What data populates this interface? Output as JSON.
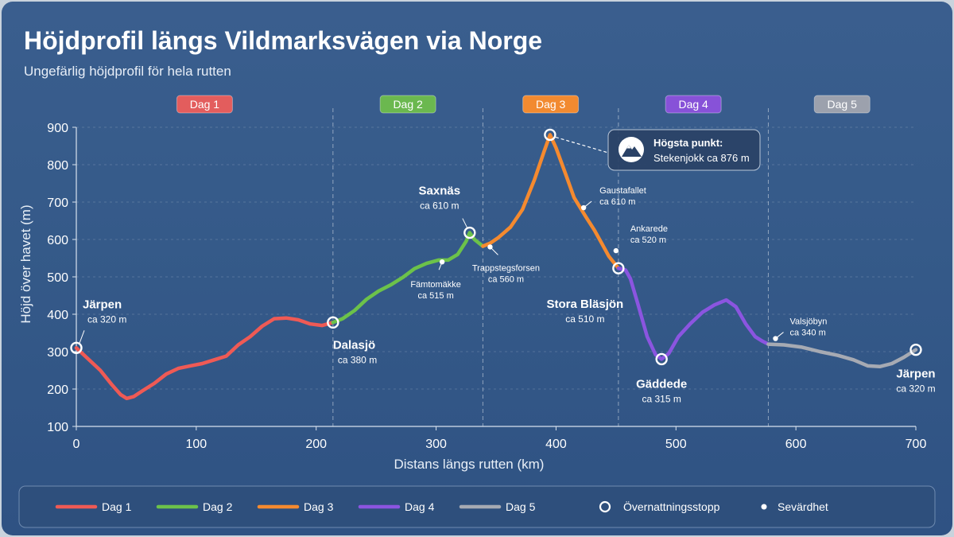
{
  "chart_data": {
    "type": "line",
    "title": "Höjdprofil längs Vildmarksvägen via Norge",
    "subtitle": "Ungefärlig höjdprofil för hela rutten",
    "xlabel": "Distans längs rutten (km)",
    "ylabel": "Höjd över havet (m)",
    "xlim": [
      0,
      700
    ],
    "ylim": [
      100,
      900
    ],
    "xticks": [
      0,
      100,
      200,
      300,
      400,
      500,
      600,
      700
    ],
    "yticks": [
      100,
      200,
      300,
      400,
      500,
      600,
      700,
      800,
      900
    ],
    "grid": true,
    "legend_position": "bottom",
    "days": [
      {
        "label": "Dag 1",
        "color": "#e35d5d",
        "range": [
          0,
          214
        ]
      },
      {
        "label": "Dag 2",
        "color": "#6bb84f",
        "range": [
          214,
          339
        ]
      },
      {
        "label": "Dag 3",
        "color": "#f28a30",
        "range": [
          339,
          452
        ]
      },
      {
        "label": "Dag 4",
        "color": "#8752d8",
        "range": [
          452,
          577
        ]
      },
      {
        "label": "Dag 5",
        "color": "#9ca1ad",
        "range": [
          577,
          700
        ]
      }
    ],
    "series": [
      {
        "name": "Dag 1",
        "color": "#ef5a55",
        "points": [
          [
            0,
            310
          ],
          [
            10,
            280
          ],
          [
            20,
            250
          ],
          [
            30,
            210
          ],
          [
            37,
            185
          ],
          [
            42,
            175
          ],
          [
            48,
            180
          ],
          [
            55,
            195
          ],
          [
            65,
            215
          ],
          [
            75,
            240
          ],
          [
            85,
            255
          ],
          [
            95,
            262
          ],
          [
            105,
            268
          ],
          [
            115,
            278
          ],
          [
            125,
            288
          ],
          [
            135,
            318
          ],
          [
            145,
            340
          ],
          [
            155,
            368
          ],
          [
            165,
            388
          ],
          [
            175,
            390
          ],
          [
            185,
            385
          ],
          [
            195,
            374
          ],
          [
            205,
            370
          ],
          [
            214,
            378
          ]
        ]
      },
      {
        "name": "Dag 2",
        "color": "#6cc24a",
        "points": [
          [
            214,
            378
          ],
          [
            222,
            388
          ],
          [
            232,
            410
          ],
          [
            242,
            440
          ],
          [
            252,
            462
          ],
          [
            262,
            478
          ],
          [
            272,
            498
          ],
          [
            282,
            522
          ],
          [
            292,
            536
          ],
          [
            302,
            545
          ],
          [
            310,
            545
          ],
          [
            318,
            560
          ],
          [
            325,
            595
          ],
          [
            328,
            618
          ],
          [
            332,
            600
          ],
          [
            339,
            582
          ]
        ]
      },
      {
        "name": "Dag 3",
        "color": "#f58a2f",
        "points": [
          [
            339,
            582
          ],
          [
            345,
            590
          ],
          [
            352,
            605
          ],
          [
            362,
            633
          ],
          [
            372,
            680
          ],
          [
            382,
            760
          ],
          [
            390,
            835
          ],
          [
            395,
            880
          ],
          [
            400,
            845
          ],
          [
            408,
            775
          ],
          [
            415,
            712
          ],
          [
            425,
            660
          ],
          [
            432,
            625
          ],
          [
            438,
            590
          ],
          [
            444,
            555
          ],
          [
            452,
            523
          ]
        ]
      },
      {
        "name": "Dag 4",
        "color": "#8b55e0",
        "points": [
          [
            452,
            523
          ],
          [
            458,
            518
          ],
          [
            462,
            495
          ],
          [
            468,
            430
          ],
          [
            476,
            340
          ],
          [
            483,
            292
          ],
          [
            488,
            280
          ],
          [
            494,
            295
          ],
          [
            502,
            340
          ],
          [
            512,
            375
          ],
          [
            522,
            405
          ],
          [
            532,
            425
          ],
          [
            542,
            438
          ],
          [
            550,
            420
          ],
          [
            558,
            375
          ],
          [
            566,
            340
          ],
          [
            572,
            328
          ],
          [
            577,
            320
          ]
        ]
      },
      {
        "name": "Dag 5",
        "color": "#a6aab3",
        "points": [
          [
            577,
            320
          ],
          [
            590,
            318
          ],
          [
            605,
            312
          ],
          [
            620,
            300
          ],
          [
            635,
            290
          ],
          [
            648,
            278
          ],
          [
            660,
            262
          ],
          [
            670,
            260
          ],
          [
            680,
            268
          ],
          [
            690,
            285
          ],
          [
            700,
            305
          ]
        ]
      }
    ],
    "stops": [
      {
        "name": "Järpen",
        "value": "ca 320 m",
        "x": 0,
        "y": 310
      },
      {
        "name": "Dalasjö",
        "value": "ca 380 m",
        "x": 214,
        "y": 378
      },
      {
        "name": "Saxnäs",
        "value": "ca 610 m",
        "x": 328,
        "y": 618
      },
      {
        "name": "Stora Bläsjön",
        "value": "ca 510 m",
        "x": 452,
        "y": 523
      },
      {
        "name": "Gäddede",
        "value": "ca 315 m",
        "x": 488,
        "y": 280
      },
      {
        "name": "Järpen",
        "value": "ca 320 m",
        "x": 700,
        "y": 305
      }
    ],
    "peak": {
      "x": 395,
      "y": 880
    },
    "sights": [
      {
        "name": "Fämtomäkke",
        "value": "ca 515 m",
        "x": 305,
        "y": 540
      },
      {
        "name": "Trappstegsforsen",
        "value": "ca 560 m",
        "x": 345,
        "y": 580
      },
      {
        "name": "Gaustafallet",
        "value": "ca 610 m",
        "x": 423,
        "y": 685
      },
      {
        "name": "Ankarede",
        "value": "ca 520 m",
        "x": 450,
        "y": 570
      },
      {
        "name": "Valsjöbyn",
        "value": "ca 340 m",
        "x": 583,
        "y": 335
      }
    ],
    "callout": {
      "title": "Högsta punkt:",
      "text": "Stekenjokk ca 876 m"
    }
  },
  "legend": {
    "days": [
      "Dag 1",
      "Dag 2",
      "Dag 3",
      "Dag 4",
      "Dag 5"
    ],
    "overnight": "Övernattningsstopp",
    "sight": "Sevärdhet"
  },
  "icons": {
    "callout_icon": "mountain-icon"
  }
}
